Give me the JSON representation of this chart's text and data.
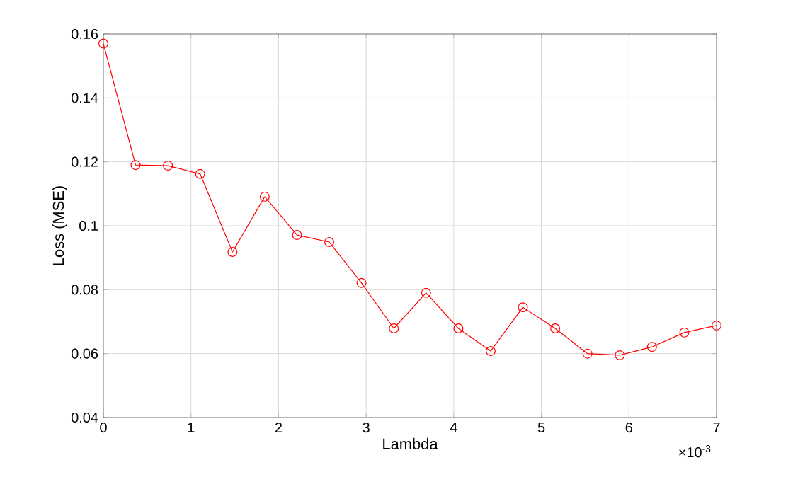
{
  "chart_data": {
    "type": "line",
    "xlabel": "Lambda",
    "ylabel": "Loss (MSE)",
    "annotations": [
      "×10$^{-3}$"
    ],
    "x": [
      0,
      0.368,
      0.737,
      1.105,
      1.474,
      1.842,
      2.211,
      2.579,
      2.947,
      3.316,
      3.684,
      4.053,
      4.421,
      4.789,
      5.158,
      5.526,
      5.895,
      6.263,
      6.632,
      7
    ],
    "series": [
      {
        "color": "#ff0000",
        "values": [
          0.157,
          0.119,
          0.1188,
          0.1162,
          0.0918,
          0.1091,
          0.0971,
          0.0949,
          0.0821,
          0.0679,
          0.079,
          0.0679,
          0.0608,
          0.0745,
          0.0679,
          0.06,
          0.0595,
          0.0621,
          0.0666,
          0.0688
        ]
      }
    ],
    "xlim": [
      0,
      7
    ],
    "ylim": [
      0.04,
      0.16
    ],
    "xticks": [
      0,
      1,
      2,
      3,
      4,
      5,
      6,
      7
    ],
    "yticks": [
      0.04,
      0.06,
      0.08,
      0.1,
      0.12,
      0.14,
      0.16
    ],
    "grid": true,
    "marker": "circle",
    "line_style": "solid"
  }
}
